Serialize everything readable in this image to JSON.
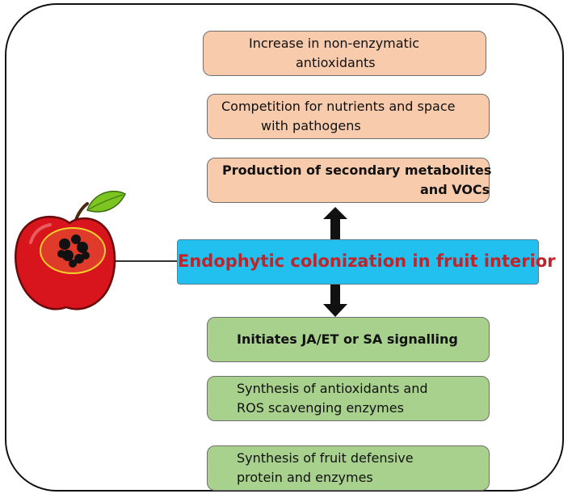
{
  "colors": {
    "frame": "#111111",
    "peach_box": "#f8cbad",
    "green_box": "#a9d18e",
    "center_box": "#21c0ee",
    "center_text": "#c0242b",
    "arrow": "#111111",
    "apple_red": "#d8141c",
    "leaf_green": "#7cc520"
  },
  "icons": [
    "apple-icon",
    "up-arrow-icon",
    "down-arrow-icon"
  ],
  "center": {
    "label": "Endophytic colonization in fruit interior"
  },
  "upper_boxes": [
    {
      "line1": "Increase in non-enzymatic",
      "line2": "antioxidants"
    },
    {
      "line1": "Competition for nutrients and space",
      "line2": "with pathogens"
    },
    {
      "line1": "Production of secondary metabolites",
      "line2": "and VOCs"
    }
  ],
  "lower_boxes": [
    {
      "line1": "Initiates JA/ET or SA signalling"
    },
    {
      "line1": "Synthesis of antioxidants and",
      "line2": "ROS scavenging enzymes"
    },
    {
      "line1": "Synthesis of fruit defensive",
      "line2": "protein and enzymes"
    }
  ]
}
